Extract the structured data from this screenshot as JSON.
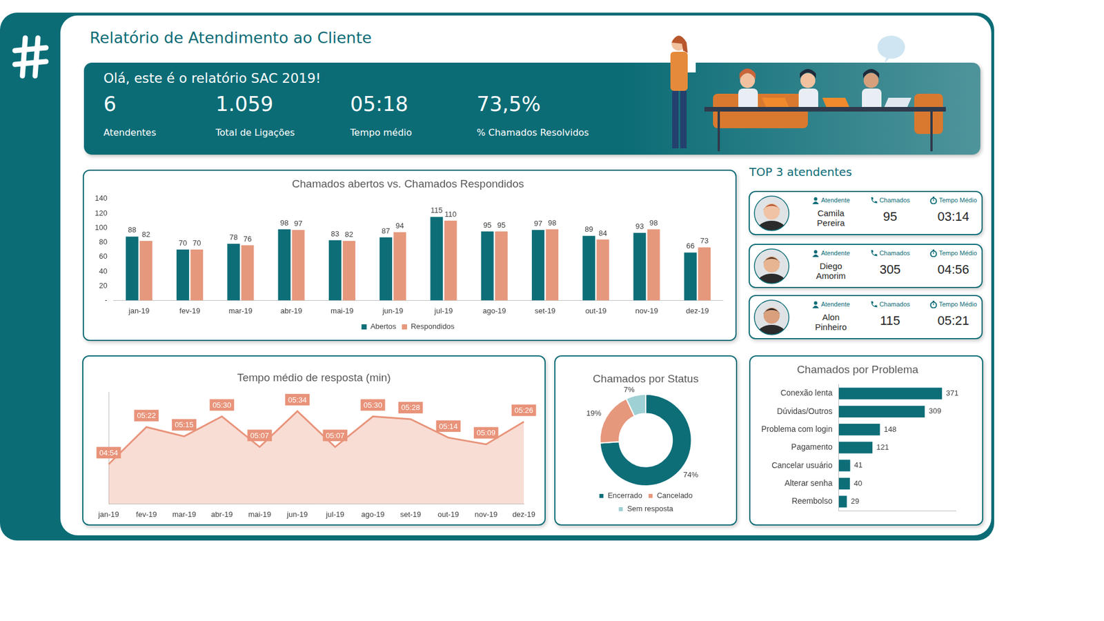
{
  "header": {
    "title": "Relatório de Atendimento ao Cliente",
    "greeting": "Olá, este é o relatório SAC 2019!",
    "kpis": [
      {
        "value": "6",
        "label": "Atendentes"
      },
      {
        "value": "1.059",
        "label": "Total de Ligações"
      },
      {
        "value": "05:18",
        "label": "Tempo médio"
      },
      {
        "value": "73,5%",
        "label": "% Chamados Resolvidos"
      }
    ]
  },
  "top_attendants": {
    "title": "TOP 3 atendentes",
    "columns": [
      "Atendente",
      "Chamados",
      "Tempo Médio"
    ],
    "rows": [
      {
        "name": "Camila Pereira",
        "calls": 95,
        "time": "03:14"
      },
      {
        "name": "Diego Amorim",
        "calls": 305,
        "time": "04:56"
      },
      {
        "name": "Alon Pinheiro",
        "calls": 115,
        "time": "05:21"
      }
    ]
  },
  "chart_data": [
    {
      "type": "bar",
      "title": "Chamados abertos vs. Chamados Respondidos",
      "categories": [
        "jan-19",
        "fev-19",
        "mar-19",
        "abr-19",
        "mai-19",
        "jun-19",
        "jul-19",
        "ago-19",
        "set-19",
        "out-19",
        "nov-19",
        "dez-19"
      ],
      "series": [
        {
          "name": "Abertos",
          "color": "#0d6e78",
          "values": [
            88,
            70,
            78,
            98,
            83,
            87,
            115,
            95,
            97,
            89,
            93,
            66
          ]
        },
        {
          "name": "Respondidos",
          "color": "#e6987d",
          "values": [
            82,
            70,
            76,
            97,
            82,
            94,
            110,
            95,
            98,
            84,
            98,
            73
          ]
        }
      ],
      "ylim": [
        0,
        140
      ],
      "yticks": [
        {
          "value": 0,
          "label": "-"
        },
        20,
        40,
        60,
        80,
        100,
        120,
        140
      ],
      "grid": false,
      "data_labels": true,
      "legend": "bottom"
    },
    {
      "type": "area",
      "title": "Tempo médio de resposta (min)",
      "categories": [
        "jan-19",
        "fev-19",
        "mar-19",
        "abr-19",
        "mai-19",
        "jun-19",
        "jul-19",
        "ago-19",
        "set-19",
        "out-19",
        "nov-19",
        "dez-19"
      ],
      "values": [
        4.9,
        5.366667,
        5.25,
        5.5,
        5.116667,
        5.566667,
        5.116667,
        5.5,
        5.466667,
        5.233333,
        5.15,
        5.433333
      ],
      "value_labels": [
        "04:54",
        "05:22",
        "05:15",
        "05:30",
        "05:07",
        "05:34",
        "05:07",
        "05:30",
        "05:28",
        "05:14",
        "05:09",
        "05:26"
      ],
      "color": "#e8937a",
      "ylim": [
        4.4,
        5.8
      ],
      "grid": false,
      "data_labels": true,
      "tick_labels": "x"
    },
    {
      "type": "doughnut",
      "title": "Chamados por Status",
      "categories": [
        "Encerrado",
        "Cancelado",
        "Sem resposta"
      ],
      "values": [
        74,
        19,
        7
      ],
      "value_labels": [
        "74%",
        "19%",
        "7%"
      ],
      "colors": [
        "#0d6e78",
        "#e6987d",
        "#9fd0d4"
      ],
      "data_labels": true,
      "legend": "bottom"
    },
    {
      "type": "bar",
      "orientation": "horizontal",
      "title": "Chamados por Problema",
      "categories": [
        "Conexão lenta",
        "Dúvidas/Outros",
        "Problema com login",
        "Pagamento",
        "Cancelar usuário",
        "Alterar senha",
        "Reembolso"
      ],
      "values": [
        371,
        309,
        148,
        121,
        41,
        40,
        29
      ],
      "color": "#0d6e78",
      "xlim": [
        0,
        420
      ],
      "grid": false,
      "data_labels": true,
      "tick_labels": "y"
    }
  ]
}
